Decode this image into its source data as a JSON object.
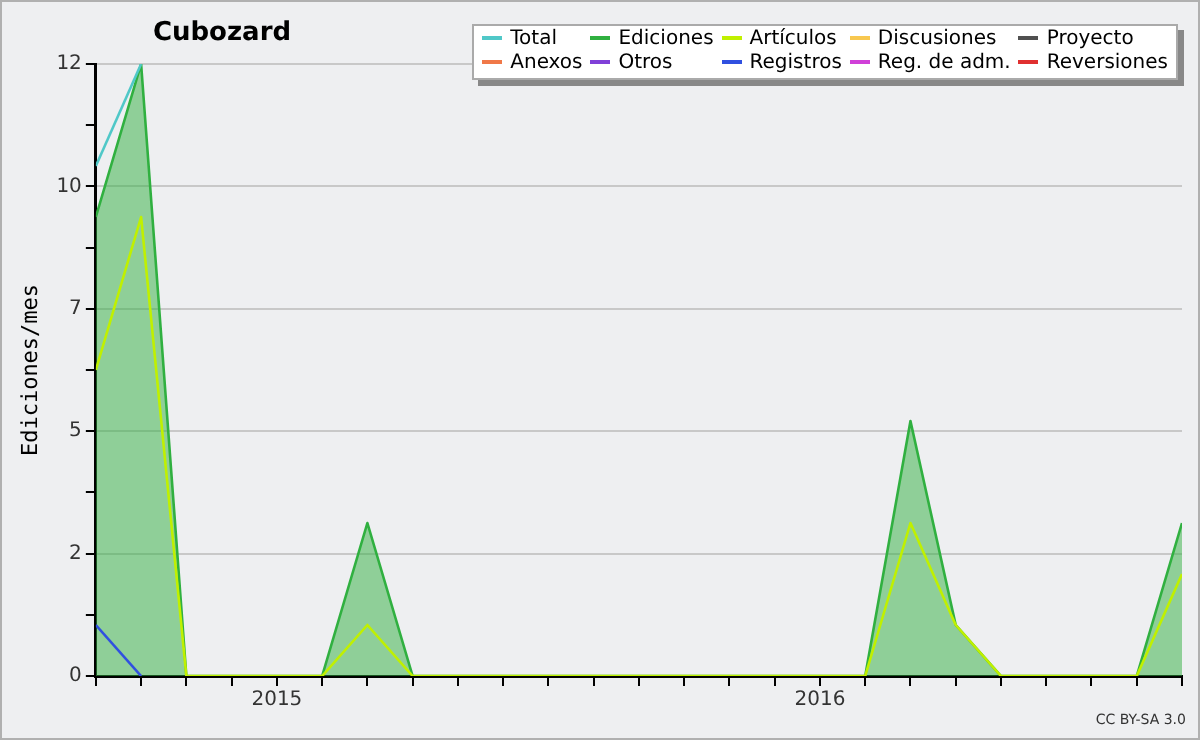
{
  "chart_data": {
    "type": "line",
    "title": "Cubozard",
    "ylabel": "Ediciones/mes",
    "x": [
      "2014-09",
      "2014-10",
      "2014-11",
      "2014-12",
      "2015-01",
      "2015-02",
      "2015-03",
      "2015-04",
      "2015-05",
      "2015-06",
      "2015-07",
      "2015-08",
      "2015-09",
      "2015-10",
      "2015-11",
      "2015-12",
      "2016-01",
      "2016-02",
      "2016-03",
      "2016-04",
      "2016-05",
      "2016-06",
      "2016-07",
      "2016-08",
      "2016-09"
    ],
    "series": [
      {
        "name": "Total",
        "color": "#50c8c8",
        "type": "line",
        "values": [
          10,
          12,
          null,
          null,
          null,
          null,
          null,
          null,
          null,
          null,
          null,
          null,
          null,
          null,
          null,
          null,
          null,
          null,
          null,
          null,
          null,
          null,
          null,
          null,
          null
        ]
      },
      {
        "name": "Ediciones",
        "color": "#30b040",
        "type": "area",
        "values": [
          9,
          12,
          0,
          0,
          0,
          0,
          3,
          0,
          0,
          0,
          0,
          0,
          0,
          0,
          0,
          0,
          0,
          0,
          5,
          1,
          0,
          0,
          0,
          0,
          3
        ]
      },
      {
        "name": "Artículos",
        "color": "#c0f000",
        "type": "line",
        "values": [
          6,
          9,
          0,
          0,
          0,
          0,
          1,
          0,
          0,
          0,
          0,
          0,
          0,
          0,
          0,
          0,
          0,
          0,
          3,
          1,
          0,
          0,
          0,
          0,
          2
        ]
      },
      {
        "name": "Discusiones",
        "color": "#f8c850",
        "type": "line",
        "values": [
          null,
          null,
          null,
          null,
          null,
          null,
          null,
          null,
          null,
          null,
          null,
          null,
          null,
          null,
          null,
          null,
          null,
          null,
          null,
          null,
          null,
          null,
          null,
          null,
          null
        ]
      },
      {
        "name": "Proyecto",
        "color": "#505050",
        "type": "line",
        "values": [
          null,
          null,
          null,
          null,
          null,
          null,
          null,
          null,
          null,
          null,
          null,
          null,
          null,
          null,
          null,
          null,
          null,
          null,
          null,
          null,
          null,
          null,
          null,
          null,
          null
        ]
      },
      {
        "name": "Anexos",
        "color": "#f07848",
        "type": "line",
        "values": [
          null,
          null,
          null,
          null,
          null,
          null,
          null,
          null,
          null,
          null,
          null,
          null,
          null,
          null,
          null,
          null,
          null,
          null,
          null,
          null,
          null,
          null,
          null,
          null,
          null
        ]
      },
      {
        "name": "Otros",
        "color": "#8040d8",
        "type": "line",
        "values": [
          null,
          null,
          null,
          null,
          null,
          null,
          null,
          null,
          null,
          null,
          null,
          null,
          null,
          null,
          null,
          null,
          null,
          null,
          null,
          null,
          null,
          null,
          null,
          null,
          null
        ]
      },
      {
        "name": "Registros",
        "color": "#3050e0",
        "type": "line",
        "values": [
          1,
          0,
          null,
          null,
          null,
          null,
          null,
          null,
          null,
          null,
          null,
          null,
          null,
          null,
          null,
          null,
          null,
          null,
          null,
          null,
          null,
          null,
          null,
          null,
          null
        ]
      },
      {
        "name": "Reg. de adm.",
        "color": "#d040d8",
        "type": "line",
        "values": [
          null,
          null,
          null,
          null,
          null,
          null,
          null,
          null,
          null,
          null,
          null,
          null,
          null,
          null,
          null,
          null,
          null,
          null,
          null,
          null,
          null,
          null,
          null,
          null,
          null
        ]
      },
      {
        "name": "Reversiones",
        "color": "#e03030",
        "type": "line",
        "values": [
          null,
          null,
          null,
          null,
          null,
          null,
          null,
          null,
          null,
          null,
          null,
          null,
          null,
          null,
          null,
          null,
          null,
          null,
          null,
          null,
          null,
          null,
          null,
          null,
          null
        ]
      }
    ],
    "xlim": [
      "2014-09",
      "2016-09"
    ],
    "xticks": [
      {
        "value": "2014-09",
        "label": null
      },
      {
        "value": "2014-10",
        "label": null
      },
      {
        "value": "2014-11",
        "label": null
      },
      {
        "value": "2014-12",
        "label": null
      },
      {
        "value": "2015-01",
        "label": "2015"
      },
      {
        "value": "2015-02",
        "label": null
      },
      {
        "value": "2015-03",
        "label": null
      },
      {
        "value": "2015-04",
        "label": null
      },
      {
        "value": "2015-05",
        "label": null
      },
      {
        "value": "2015-06",
        "label": null
      },
      {
        "value": "2015-07",
        "label": null
      },
      {
        "value": "2015-08",
        "label": null
      },
      {
        "value": "2015-09",
        "label": null
      },
      {
        "value": "2015-10",
        "label": null
      },
      {
        "value": "2015-11",
        "label": null
      },
      {
        "value": "2015-12",
        "label": null
      },
      {
        "value": "2016-01",
        "label": "2016"
      },
      {
        "value": "2016-02",
        "label": null
      },
      {
        "value": "2016-03",
        "label": null
      },
      {
        "value": "2016-04",
        "label": null
      },
      {
        "value": "2016-05",
        "label": null
      },
      {
        "value": "2016-06",
        "label": null
      },
      {
        "value": "2016-07",
        "label": null
      },
      {
        "value": "2016-08",
        "label": null
      },
      {
        "value": "2016-09",
        "label": null
      }
    ],
    "ylim": [
      0,
      12
    ],
    "yticks": [
      0,
      {
        "value": 1.2,
        "label": null
      },
      {
        "value": 2.4,
        "label": "2"
      },
      {
        "value": 3.6,
        "label": null
      },
      {
        "value": 4.8,
        "label": "5"
      },
      {
        "value": 6,
        "label": null
      },
      {
        "value": 7.2,
        "label": "7"
      },
      {
        "value": 8.4,
        "label": null
      },
      {
        "value": 9.6,
        "label": "10"
      },
      {
        "value": 10.8,
        "label": null
      },
      12
    ],
    "grid": "y",
    "legend": "top right",
    "marker": "none",
    "line_style": "solid",
    "annotations": [
      "CC BY-SA 3.0"
    ]
  }
}
